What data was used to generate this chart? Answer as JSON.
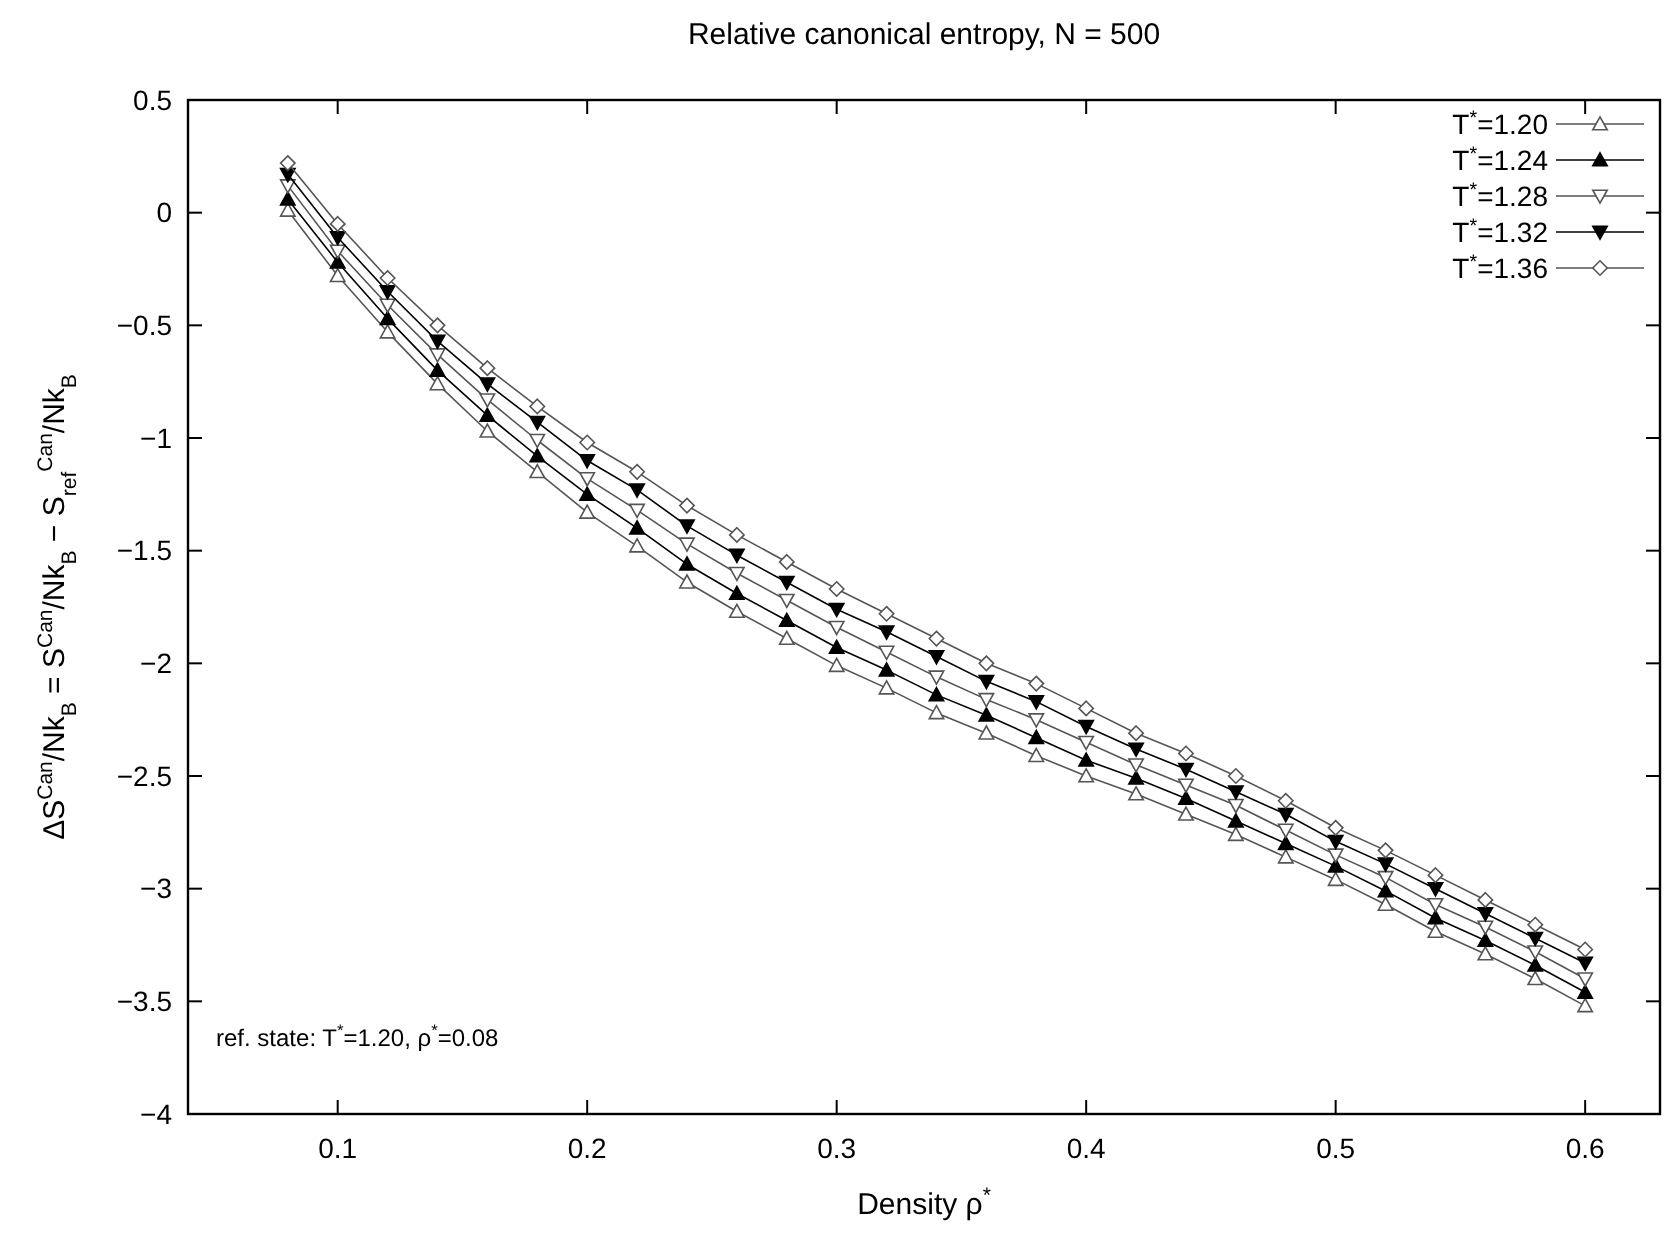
{
  "chart_data": {
    "type": "line",
    "title": "Relative canonical entropy, N = 500",
    "xlabel": "Density ρ$^{*}$",
    "ylabel": "ΔS$^{Can}$/Nk$_{B}$ = S$^{Can}$/Nk$_{B}$ − S$_{ref}$$^{Can}$/Nk$_{B}$",
    "annotations": [
      "ref. state: T$^{*}$=1.20, ρ$^{*}$=0.08"
    ],
    "x": [
      0.08,
      0.1,
      0.12,
      0.14,
      0.16,
      0.18,
      0.2,
      0.22,
      0.24,
      0.26,
      0.28,
      0.3,
      0.32,
      0.34,
      0.36,
      0.38,
      0.4,
      0.42,
      0.44,
      0.46,
      0.48,
      0.5,
      0.52,
      0.54,
      0.56,
      0.58,
      0.6
    ],
    "series": [
      {
        "name": "T$^{*}$=1.20",
        "color": "#555555",
        "marker": "triangle-open",
        "values": [
          0.01,
          -0.28,
          -0.53,
          -0.76,
          -0.97,
          -1.15,
          -1.33,
          -1.48,
          -1.64,
          -1.77,
          -1.89,
          -2.01,
          -2.11,
          -2.22,
          -2.31,
          -2.41,
          -2.5,
          -2.58,
          -2.67,
          -2.76,
          -2.86,
          -2.96,
          -3.07,
          -3.19,
          -3.29,
          -3.4,
          -3.52
        ]
      },
      {
        "name": "T$^{*}$=1.24",
        "color": "#000000",
        "marker": "triangle",
        "values": [
          0.06,
          -0.22,
          -0.47,
          -0.7,
          -0.9,
          -1.08,
          -1.25,
          -1.4,
          -1.56,
          -1.69,
          -1.81,
          -1.93,
          -2.03,
          -2.14,
          -2.23,
          -2.33,
          -2.43,
          -2.51,
          -2.6,
          -2.7,
          -2.8,
          -2.9,
          -3.01,
          -3.13,
          -3.23,
          -3.34,
          -3.46
        ]
      },
      {
        "name": "T$^{*}$=1.28",
        "color": "#555555",
        "marker": "triangle-down-open",
        "values": [
          0.12,
          -0.17,
          -0.41,
          -0.63,
          -0.83,
          -1.01,
          -1.18,
          -1.32,
          -1.47,
          -1.6,
          -1.72,
          -1.84,
          -1.95,
          -2.06,
          -2.16,
          -2.25,
          -2.35,
          -2.45,
          -2.54,
          -2.63,
          -2.74,
          -2.85,
          -2.95,
          -3.07,
          -3.17,
          -3.28,
          -3.4
        ]
      },
      {
        "name": "T$^{*}$=1.32",
        "color": "#000000",
        "marker": "triangle-down",
        "values": [
          0.17,
          -0.11,
          -0.35,
          -0.57,
          -0.76,
          -0.93,
          -1.1,
          -1.23,
          -1.39,
          -1.52,
          -1.64,
          -1.76,
          -1.86,
          -1.97,
          -2.08,
          -2.17,
          -2.28,
          -2.38,
          -2.47,
          -2.57,
          -2.67,
          -2.79,
          -2.89,
          -3.0,
          -3.11,
          -3.22,
          -3.33
        ]
      },
      {
        "name": "T$^{*}$=1.36",
        "color": "#555555",
        "marker": "diamond-open",
        "values": [
          0.22,
          -0.05,
          -0.29,
          -0.5,
          -0.69,
          -0.86,
          -1.02,
          -1.15,
          -1.3,
          -1.43,
          -1.55,
          -1.67,
          -1.78,
          -1.89,
          -2.0,
          -2.09,
          -2.2,
          -2.31,
          -2.4,
          -2.5,
          -2.61,
          -2.73,
          -2.83,
          -2.94,
          -3.05,
          -3.16,
          -3.27
        ]
      }
    ],
    "xlim": [
      0.04,
      0.63
    ],
    "xticks": [
      0.1,
      0.2,
      0.3,
      0.4,
      0.5,
      0.6
    ],
    "ylim": [
      -4,
      0.5
    ],
    "yticks": [
      -4,
      -3.5,
      -3,
      -2.5,
      -2,
      -1.5,
      -1,
      -0.5,
      0,
      0.5
    ],
    "legend": "top right",
    "grid": false,
    "line_style": "solid"
  }
}
